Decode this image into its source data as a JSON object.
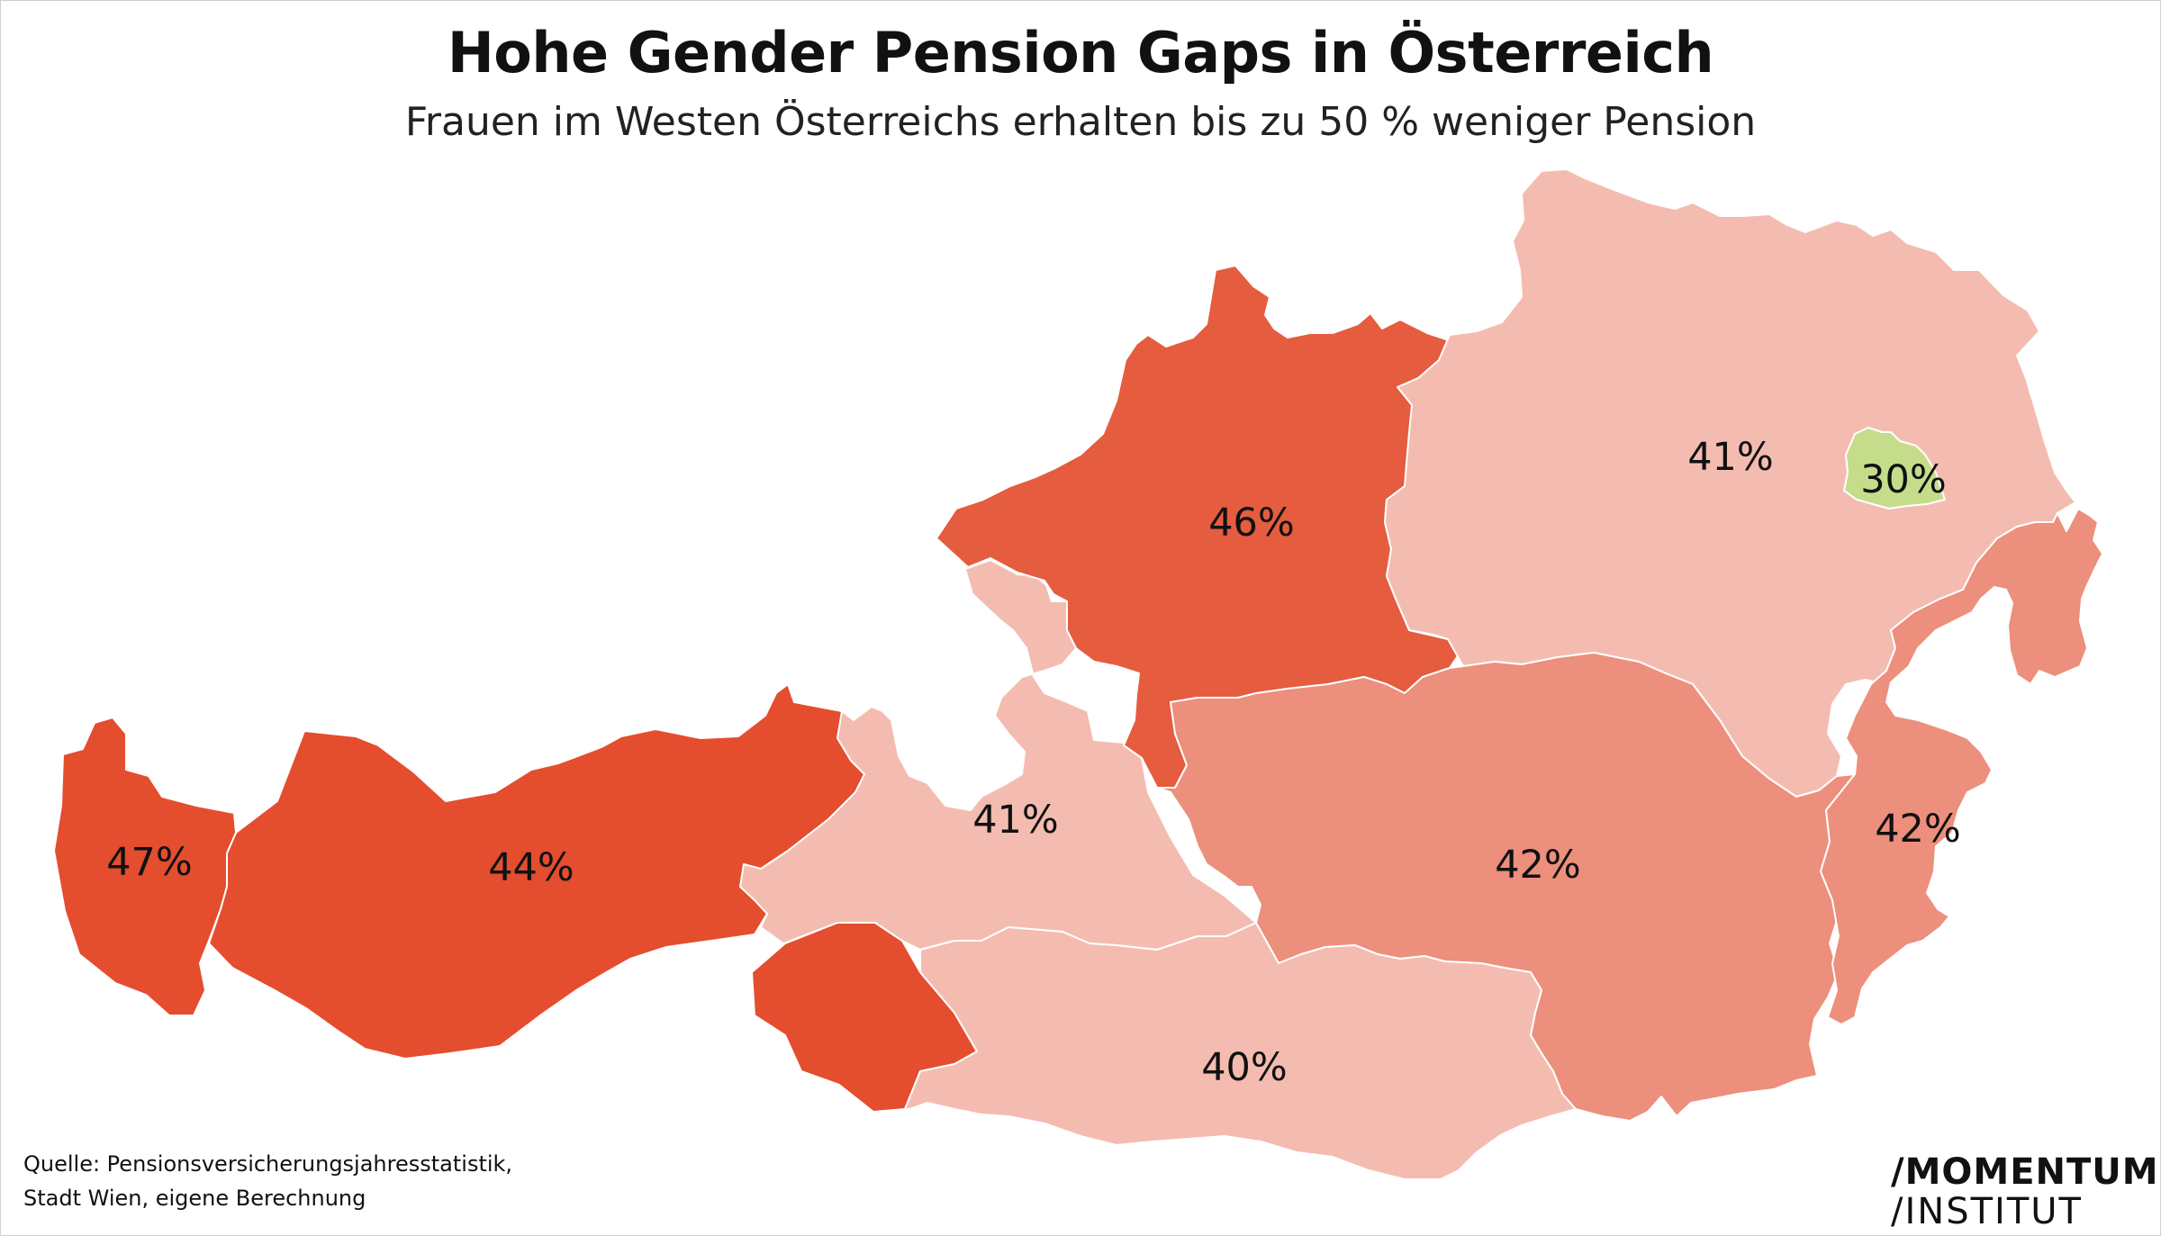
{
  "title": "Hohe Gender Pension Gaps in Österreich",
  "subtitle": "Frauen im Westen Österreichs erhalten bis zu 50 % weniger Pension",
  "colors": {
    "high": "#e44d2e",
    "mid_high": "#e55c3f",
    "mid": "#ec8f7c",
    "low": "#f4bcb0",
    "vienna": "#c5dd8a"
  },
  "regions": [
    {
      "id": "vorarlberg",
      "label": "47%",
      "color": "#e44d2e"
    },
    {
      "id": "tirol",
      "label": "44%",
      "color": "#e44d2e"
    },
    {
      "id": "osttirol",
      "label": "",
      "color": "#e44d2e"
    },
    {
      "id": "salzburg",
      "label": "41%",
      "color": "#f4bcb0"
    },
    {
      "id": "oberoesterreich",
      "label": "46%",
      "color": "#e55c3f"
    },
    {
      "id": "niederoesterreich",
      "label": "41%",
      "color": "#f4bcb0"
    },
    {
      "id": "wien",
      "label": "30%",
      "color": "#c5dd8a"
    },
    {
      "id": "steiermark",
      "label": "42%",
      "color": "#ec8f7c"
    },
    {
      "id": "burgenland",
      "label": "42%",
      "color": "#ec8f7c"
    },
    {
      "id": "kaernten",
      "label": "40%",
      "color": "#f4bcb0"
    }
  ],
  "source": {
    "line1": "Quelle: Pensionsversicherungsjahresstatistik,",
    "line2": "Stadt Wien, eigene Berechnung"
  },
  "logo": {
    "line1": "/MOMENTUM",
    "line2": "/INSTITUT"
  }
}
